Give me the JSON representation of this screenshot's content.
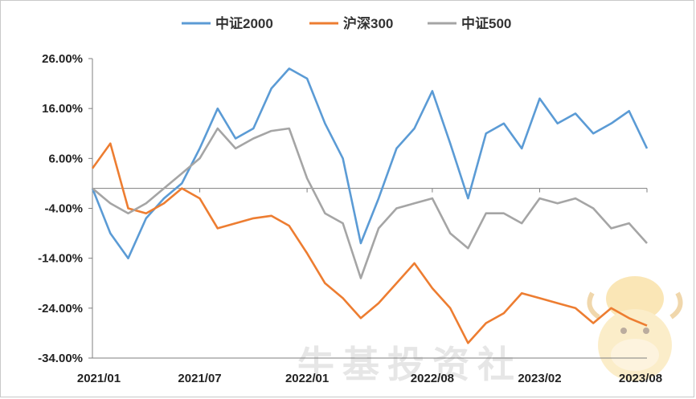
{
  "chart_data": {
    "type": "line",
    "title": "",
    "xlabel": "",
    "ylabel": "",
    "ylim": [
      -34,
      26
    ],
    "yticks": [
      "26.00%",
      "16.00%",
      "6.00%",
      "-4.00%",
      "-14.00%",
      "-24.00%",
      "-34.00%"
    ],
    "ytick_values": [
      26,
      16,
      6,
      -4,
      -14,
      -24,
      -34
    ],
    "xticks": [
      "2021/01",
      "2021/07",
      "2022/01",
      "2022/08",
      "2023/02",
      "2023/08"
    ],
    "x": [
      "2021/01",
      "2021/02",
      "2021/03",
      "2021/04",
      "2021/05",
      "2021/06",
      "2021/07",
      "2021/08",
      "2021/09",
      "2021/10",
      "2021/11",
      "2021/12",
      "2022/01",
      "2022/02",
      "2022/03",
      "2022/04",
      "2022/05",
      "2022/06",
      "2022/07",
      "2022/08",
      "2022/09",
      "2022/10",
      "2022/11",
      "2022/12",
      "2023/01",
      "2023/02",
      "2023/03",
      "2023/04",
      "2023/05",
      "2023/06",
      "2023/07",
      "2023/08"
    ],
    "legend_position": "top",
    "grid": false,
    "series": [
      {
        "name": "中证2000",
        "color": "#5b9bd5",
        "values": [
          0.0,
          -9.0,
          -14.0,
          -6.0,
          -2.0,
          1.0,
          8.0,
          16.0,
          10.0,
          12.0,
          20.0,
          24.0,
          22.0,
          13.0,
          6.0,
          -11.0,
          -2.0,
          8.0,
          12.0,
          19.5,
          9.0,
          -2.0,
          11.0,
          13.0,
          8.0,
          18.0,
          13.0,
          15.0,
          11.0,
          13.0,
          15.5,
          8.0
        ]
      },
      {
        "name": "沪深300",
        "color": "#ed7d31",
        "values": [
          4.0,
          9.0,
          -4.0,
          -5.0,
          -3.0,
          0.0,
          -2.0,
          -8.0,
          -7.0,
          -6.0,
          -5.5,
          -7.5,
          -13.0,
          -19.0,
          -22.0,
          -26.0,
          -23.0,
          -19.0,
          -15.0,
          -20.0,
          -24.0,
          -31.0,
          -27.0,
          -25.0,
          -21.0,
          -22.0,
          -23.0,
          -24.0,
          -27.0,
          -24.0,
          -26.0,
          -27.5
        ]
      },
      {
        "name": "中证500",
        "color": "#a5a5a5",
        "values": [
          0.0,
          -3.0,
          -5.0,
          -3.0,
          0.0,
          3.0,
          6.0,
          12.0,
          8.0,
          10.0,
          11.5,
          12.0,
          2.0,
          -5.0,
          -7.0,
          -18.0,
          -8.0,
          -4.0,
          -3.0,
          -2.0,
          -9.0,
          -12.0,
          -5.0,
          -5.0,
          -7.0,
          -2.0,
          -3.0,
          -2.0,
          -4.0,
          -8.0,
          -7.0,
          -11.0
        ]
      }
    ]
  }
}
